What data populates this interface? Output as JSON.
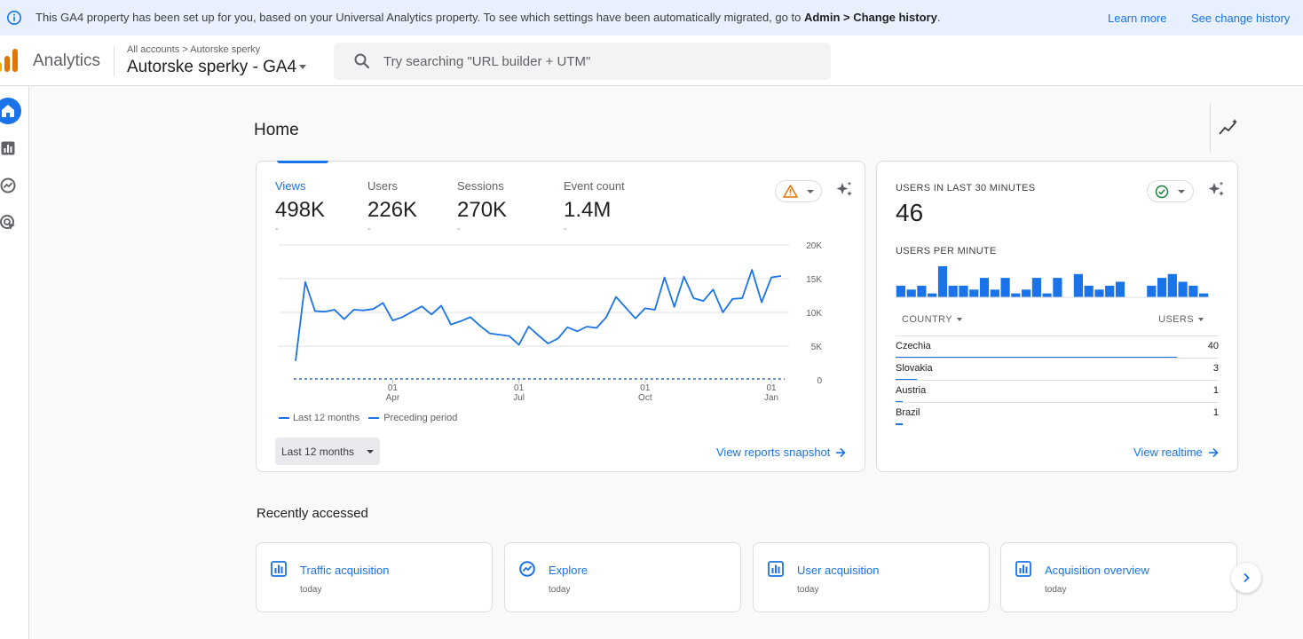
{
  "banner": {
    "message_prefix": "This GA4 property has been set up for you, based on your Universal Analytics property. To see which settings have been automatically migrated, go to ",
    "message_bold": "Admin > Change history",
    "message_suffix": ".",
    "learn_more": "Learn more",
    "see_history": "See change history"
  },
  "header": {
    "product": "Analytics",
    "breadcrumb": "All accounts > Autorske sperky",
    "property": "Autorske sperky - GA4",
    "search_placeholder": "Try searching \"URL builder + UTM\""
  },
  "page": {
    "title": "Home"
  },
  "overview": {
    "metrics": [
      {
        "label": "Views",
        "value": "498K",
        "delta": "-"
      },
      {
        "label": "Users",
        "value": "226K",
        "delta": "-"
      },
      {
        "label": "Sessions",
        "value": "270K",
        "delta": "-"
      },
      {
        "label": "Event count",
        "value": "1.4M",
        "delta": "-"
      }
    ],
    "legend_current": "Last 12 months",
    "legend_previous": "Preceding period",
    "date_range": "Last 12 months",
    "view_link": "View reports snapshot"
  },
  "chart_data": {
    "type": "line",
    "x_tick_labels": [
      [
        "01",
        "Apr"
      ],
      [
        "01",
        "Jul"
      ],
      [
        "01",
        "Oct"
      ],
      [
        "01",
        "Jan"
      ]
    ],
    "x_tick_positions": [
      10,
      23,
      36,
      49
    ],
    "y_tick_labels": [
      "20K",
      "15K",
      "10K",
      "5K",
      "0"
    ],
    "ylim": [
      0,
      20000
    ],
    "grid": true,
    "series": [
      {
        "name": "Last 12 months",
        "style": "solid",
        "color": "#1a73e8",
        "values": [
          2800,
          14500,
          10200,
          10100,
          10400,
          9000,
          10400,
          10300,
          10500,
          11400,
          8800,
          9300,
          10100,
          10900,
          9700,
          11000,
          8200,
          8700,
          9300,
          8000,
          6900,
          6700,
          6500,
          5200,
          7900,
          6600,
          5400,
          6100,
          7800,
          7200,
          7900,
          7700,
          9300,
          12300,
          10700,
          9100,
          10600,
          10400,
          15200,
          10800,
          15300,
          12100,
          11700,
          13400,
          10000,
          12000,
          12100,
          16300,
          11500,
          15200,
          15400
        ]
      },
      {
        "name": "Preceding period",
        "style": "dashed",
        "color": "#1a73e8",
        "values": [
          0,
          0
        ]
      }
    ]
  },
  "realtime": {
    "label": "USERS IN LAST 30 MINUTES",
    "value": "46",
    "per_minute_label": "USERS PER MINUTE",
    "per_minute_values": [
      3,
      2,
      3,
      1,
      8,
      3,
      3,
      2,
      5,
      2,
      5,
      1,
      2,
      5,
      1,
      5,
      0,
      6,
      3,
      2,
      3,
      4,
      0,
      0,
      3,
      5,
      6,
      4,
      3,
      1
    ],
    "col_country": "COUNTRY",
    "col_users": "USERS",
    "rows": [
      {
        "country": "Czechia",
        "users": "40",
        "share": 1.0
      },
      {
        "country": "Slovakia",
        "users": "3",
        "share": 0.075
      },
      {
        "country": "Austria",
        "users": "1",
        "share": 0.025
      },
      {
        "country": "Brazil",
        "users": "1",
        "share": 0.025
      }
    ],
    "view_link": "View realtime"
  },
  "recent": {
    "title": "Recently accessed",
    "items": [
      {
        "title": "Traffic acquisition",
        "sub": "today",
        "icon": "bar-chart-icon"
      },
      {
        "title": "Explore",
        "sub": "today",
        "icon": "explore-icon"
      },
      {
        "title": "User acquisition",
        "sub": "today",
        "icon": "bar-chart-icon"
      },
      {
        "title": "Acquisition overview",
        "sub": "today",
        "icon": "bar-chart-icon"
      }
    ]
  },
  "colors": {
    "accent": "#1a73e8",
    "banner_bg": "#e8f0fe",
    "warning": "#e37400",
    "success": "#188038"
  }
}
